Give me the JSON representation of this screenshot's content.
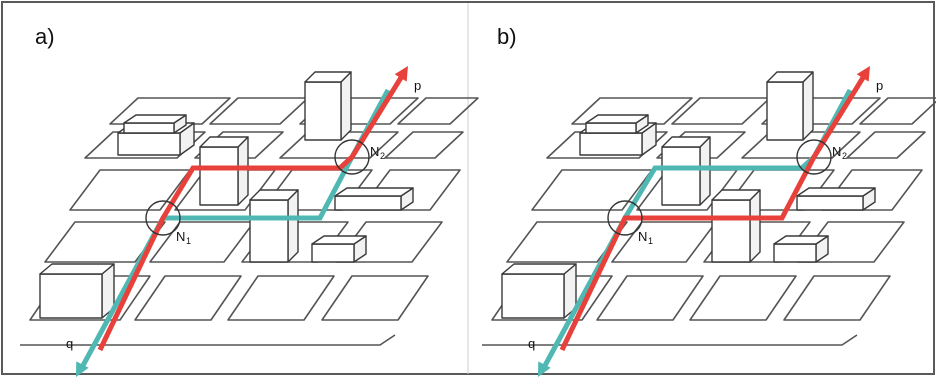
{
  "colors": {
    "red": "#e8403a",
    "teal": "#4fb8b3",
    "line": "#555555"
  },
  "panels": [
    {
      "label": "a)",
      "red_route": "p-via-N1-upper-block-N2",
      "teal_route": "q-via-N1-lower-block-N2",
      "nodes": [
        {
          "main": "N",
          "sub": "1"
        },
        {
          "main": "N",
          "sub": "2"
        }
      ],
      "endpoint_top": "p",
      "endpoint_bottom": "q"
    },
    {
      "label": "b)",
      "red_route": "p-via-N1-lower-block-N2",
      "teal_route": "q-via-N1-upper-block-N2",
      "nodes": [
        {
          "main": "N",
          "sub": "1"
        },
        {
          "main": "N",
          "sub": "2"
        }
      ],
      "endpoint_top": "p",
      "endpoint_bottom": "q"
    }
  ]
}
